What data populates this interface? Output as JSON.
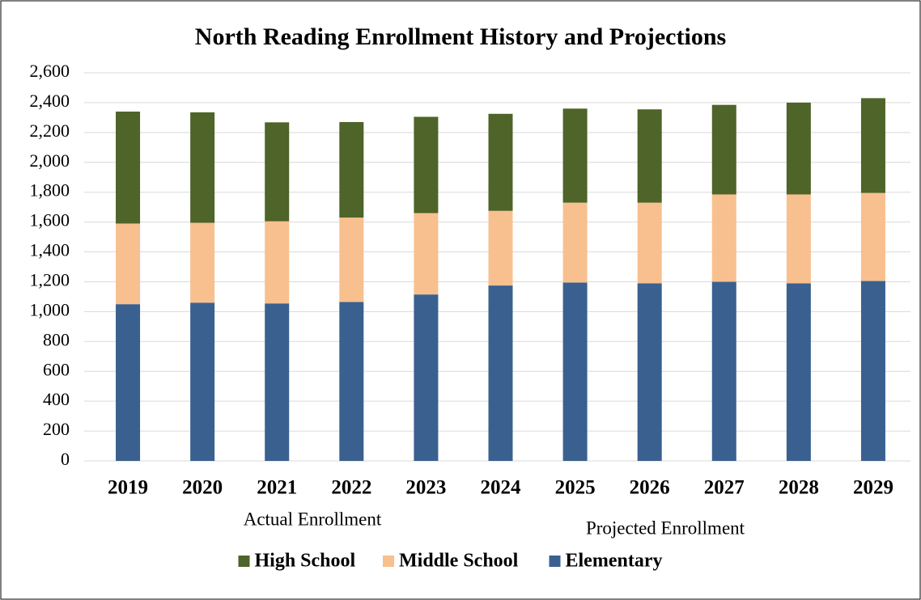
{
  "chart_data": {
    "type": "stacked_bar",
    "title": "North Reading Enrollment History and Projections",
    "categories": [
      "2019",
      "2020",
      "2021",
      "2022",
      "2023",
      "2024",
      "2025",
      "2026",
      "2027",
      "2028",
      "2029"
    ],
    "series": [
      {
        "name": "Elementary",
        "color": "#3a6090",
        "values": [
          1050,
          1060,
          1055,
          1065,
          1115,
          1175,
          1195,
          1190,
          1200,
          1190,
          1205
        ]
      },
      {
        "name": "Middle School",
        "color": "#f8c08e",
        "values": [
          540,
          535,
          550,
          565,
          545,
          500,
          535,
          540,
          585,
          595,
          590
        ]
      },
      {
        "name": "High School",
        "color": "#4e6428",
        "values": [
          750,
          740,
          663,
          640,
          645,
          650,
          630,
          625,
          600,
          615,
          635
        ]
      }
    ],
    "annotations": [
      "Actual Enrollment",
      "Projected Enrollment"
    ],
    "ylim": [
      0,
      2600
    ],
    "yticks": [
      0,
      200,
      400,
      600,
      800,
      {
        "value": 1000,
        "label": "1,000"
      },
      {
        "value": 1200,
        "label": "1,200"
      },
      {
        "value": 1400,
        "label": "1,400"
      },
      {
        "value": 1600,
        "label": "1,600"
      },
      {
        "value": 1800,
        "label": "1,800"
      },
      {
        "value": 2000,
        "label": "2,000"
      },
      {
        "value": 2200,
        "label": "2,200"
      },
      {
        "value": 2400,
        "label": "2,400"
      },
      {
        "value": 2600,
        "label": "2,600"
      }
    ],
    "grid": true,
    "legend": "bottom"
  }
}
